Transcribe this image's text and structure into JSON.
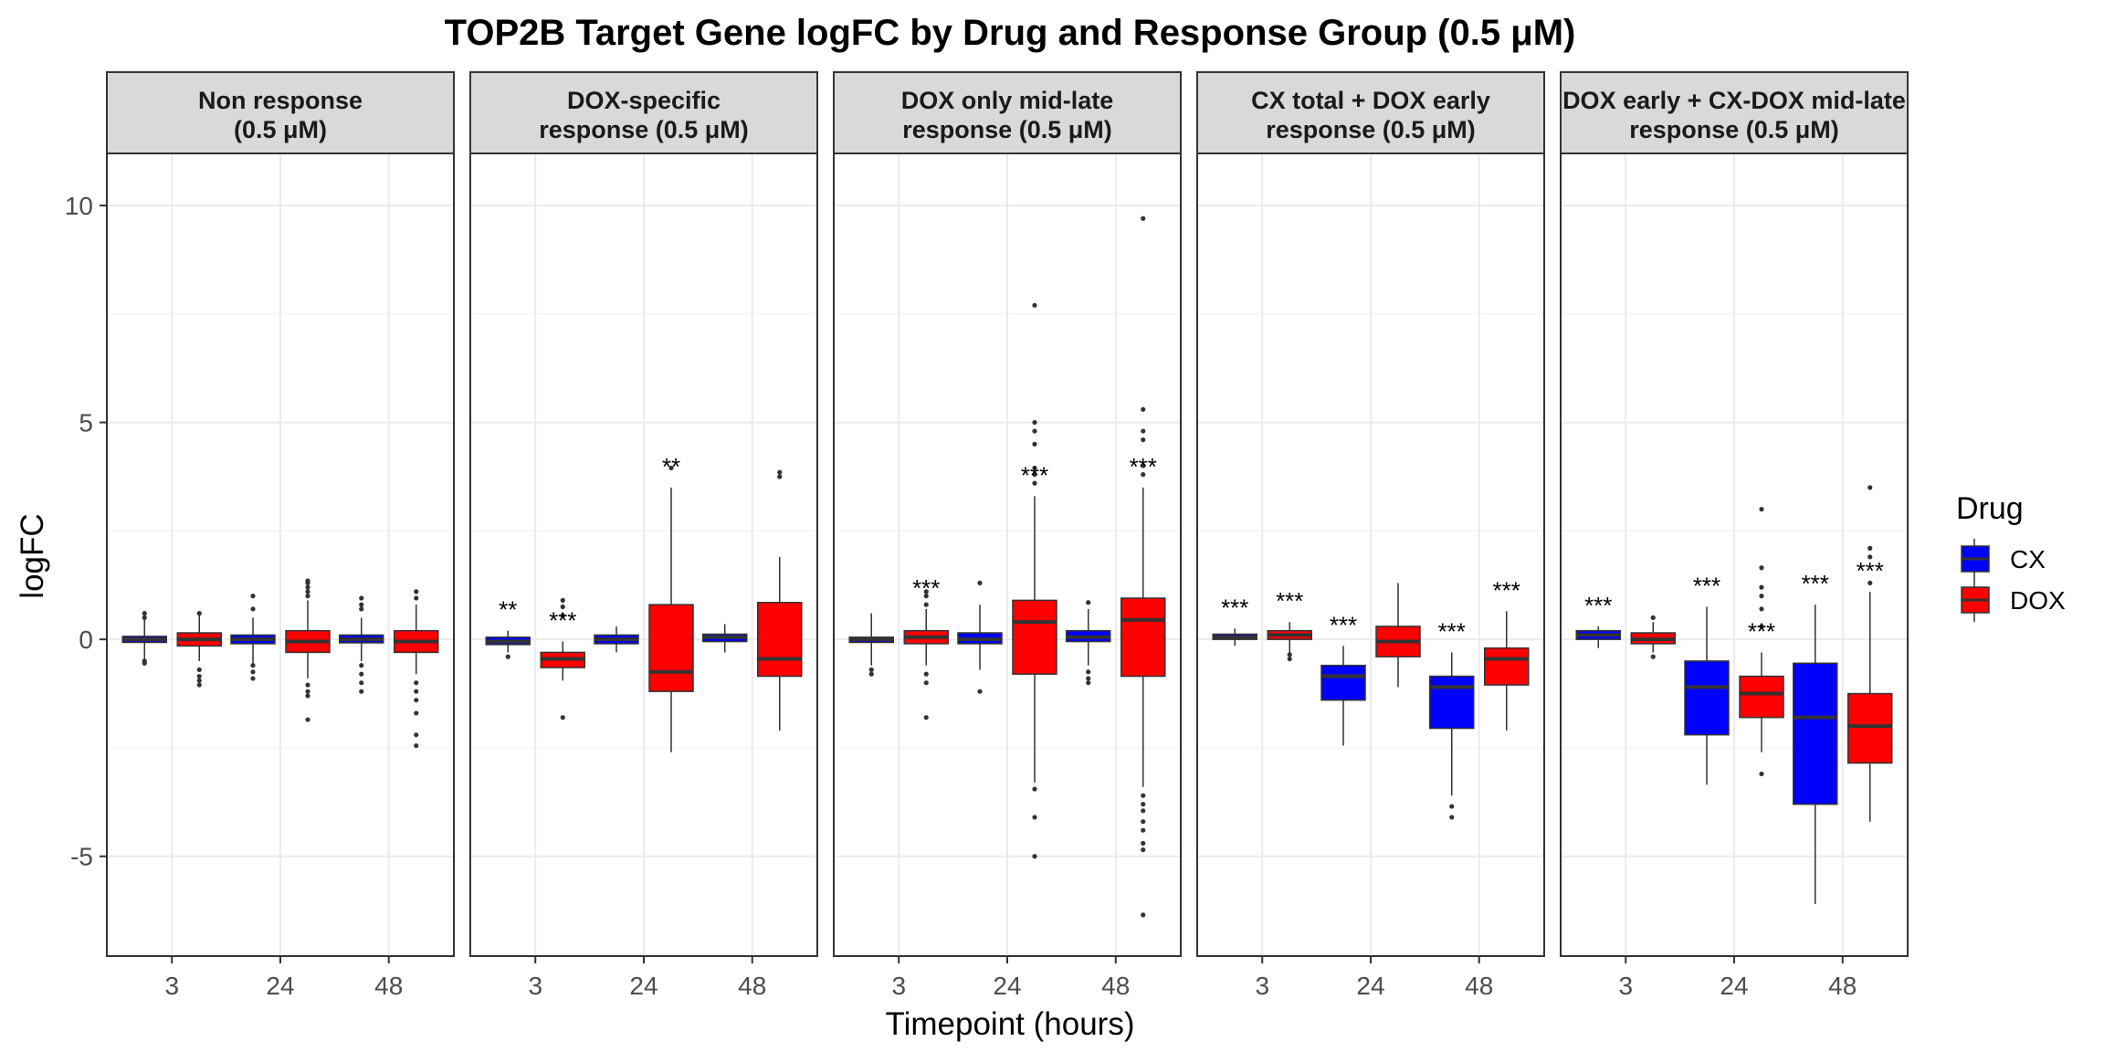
{
  "chart_data": {
    "type": "box",
    "title": "TOP2B Target Gene logFC by Drug and Response Group (0.5 μM)",
    "xlabel": "Timepoint (hours)",
    "ylabel": "logFC",
    "ylim": [
      -7.3,
      11.2
    ],
    "yticks": [
      -5,
      0,
      5,
      10
    ],
    "ytick_labels": [
      "-5",
      "0",
      "5",
      "10"
    ],
    "categories": [
      "3",
      "24",
      "48"
    ],
    "grid": true,
    "legend": {
      "title": "Drug",
      "position": "right",
      "entries": [
        {
          "name": "CX",
          "color": "#0000ff"
        },
        {
          "name": "DOX",
          "color": "#ff0000"
        }
      ]
    },
    "colors": {
      "CX": "#0000ff",
      "DOX": "#ff0000",
      "strip_fill": "#d9d9d9",
      "grid": "#ebebeb",
      "median": "#333333"
    },
    "panels": [
      {
        "label": [
          "Non response",
          "(0.5 μM)"
        ],
        "boxes": [
          {
            "x": "3",
            "drug": "CX",
            "whisker_low": -0.45,
            "q1": -0.07,
            "median": 0.0,
            "q3": 0.07,
            "whisker_high": 0.45,
            "outliers": [
              0.6,
              0.5,
              -0.5,
              -0.55
            ],
            "sig": ""
          },
          {
            "x": "3",
            "drug": "DOX",
            "whisker_low": -0.5,
            "q1": -0.15,
            "median": 0.0,
            "q3": 0.15,
            "whisker_high": 0.55,
            "outliers": [
              0.6,
              -0.7,
              -0.85,
              -0.95,
              -1.05
            ],
            "sig": ""
          },
          {
            "x": "24",
            "drug": "CX",
            "whisker_low": -0.55,
            "q1": -0.1,
            "median": 0.0,
            "q3": 0.1,
            "whisker_high": 0.5,
            "outliers": [
              1.0,
              0.7,
              -0.6,
              -0.75,
              -0.9
            ],
            "sig": ""
          },
          {
            "x": "24",
            "drug": "DOX",
            "whisker_low": -0.9,
            "q1": -0.3,
            "median": -0.05,
            "q3": 0.2,
            "whisker_high": 0.9,
            "outliers": [
              1.0,
              1.1,
              1.2,
              1.3,
              1.35,
              -1.05,
              -1.2,
              -1.3,
              -1.85
            ],
            "sig": ""
          },
          {
            "x": "48",
            "drug": "CX",
            "whisker_low": -0.5,
            "q1": -0.08,
            "median": 0.0,
            "q3": 0.1,
            "whisker_high": 0.5,
            "outliers": [
              0.7,
              0.8,
              0.95,
              -0.6,
              -0.8,
              -1.0,
              -1.2
            ],
            "sig": ""
          },
          {
            "x": "48",
            "drug": "DOX",
            "whisker_low": -0.8,
            "q1": -0.3,
            "median": -0.05,
            "q3": 0.2,
            "whisker_high": 0.8,
            "outliers": [
              0.95,
              1.1,
              -1.0,
              -1.2,
              -1.4,
              -1.7,
              -2.2,
              -2.45
            ],
            "sig": ""
          }
        ]
      },
      {
        "label": [
          "DOX-specific",
          "response (0.5 μM)"
        ],
        "boxes": [
          {
            "x": "3",
            "drug": "CX",
            "whisker_low": -0.3,
            "q1": -0.12,
            "median": -0.05,
            "q3": 0.05,
            "whisker_high": 0.2,
            "outliers": [
              -0.4
            ],
            "sig": "**"
          },
          {
            "x": "3",
            "drug": "DOX",
            "whisker_low": -0.95,
            "q1": -0.65,
            "median": -0.45,
            "q3": -0.3,
            "whisker_high": -0.05,
            "outliers": [
              0.55,
              0.75,
              0.9,
              -1.8
            ],
            "sig": "***"
          },
          {
            "x": "24",
            "drug": "CX",
            "whisker_low": -0.3,
            "q1": -0.1,
            "median": 0.0,
            "q3": 0.1,
            "whisker_high": 0.3,
            "outliers": [],
            "sig": ""
          },
          {
            "x": "24",
            "drug": "DOX",
            "whisker_low": -2.6,
            "q1": -1.2,
            "median": -0.75,
            "q3": 0.8,
            "whisker_high": 3.5,
            "outliers": [
              3.95
            ],
            "sig": "**"
          },
          {
            "x": "48",
            "drug": "CX",
            "whisker_low": -0.3,
            "q1": -0.05,
            "median": 0.05,
            "q3": 0.12,
            "whisker_high": 0.35,
            "outliers": [],
            "sig": ""
          },
          {
            "x": "48",
            "drug": "DOX",
            "whisker_low": -2.1,
            "q1": -0.85,
            "median": -0.45,
            "q3": 0.85,
            "whisker_high": 1.9,
            "outliers": [
              3.75,
              3.85
            ],
            "sig": ""
          }
        ]
      },
      {
        "label": [
          "DOX only mid-late",
          "response (0.5 μM)"
        ],
        "boxes": [
          {
            "x": "3",
            "drug": "CX",
            "whisker_low": -0.6,
            "q1": -0.07,
            "median": 0.0,
            "q3": 0.05,
            "whisker_high": 0.6,
            "outliers": [
              -0.7,
              -0.8
            ],
            "sig": ""
          },
          {
            "x": "3",
            "drug": "DOX",
            "whisker_low": -0.6,
            "q1": -0.1,
            "median": 0.05,
            "q3": 0.2,
            "whisker_high": 0.7,
            "outliers": [
              0.8,
              1.0,
              1.1,
              -0.8,
              -1.0,
              -1.8
            ],
            "sig": "***"
          },
          {
            "x": "24",
            "drug": "CX",
            "whisker_low": -0.7,
            "q1": -0.1,
            "median": 0.0,
            "q3": 0.15,
            "whisker_high": 0.8,
            "outliers": [
              1.3,
              -1.2
            ],
            "sig": ""
          },
          {
            "x": "24",
            "drug": "DOX",
            "whisker_low": -3.3,
            "q1": -0.8,
            "median": 0.4,
            "q3": 0.9,
            "whisker_high": 3.3,
            "outliers": [
              3.6,
              3.8,
              3.95,
              4.5,
              4.8,
              5.0,
              7.7,
              -3.45,
              -4.1,
              -5.0
            ],
            "sig": "***"
          },
          {
            "x": "48",
            "drug": "CX",
            "whisker_low": -0.6,
            "q1": -0.05,
            "median": 0.05,
            "q3": 0.2,
            "whisker_high": 0.7,
            "outliers": [
              0.85,
              -0.75,
              -0.9,
              -1.0
            ],
            "sig": ""
          },
          {
            "x": "48",
            "drug": "DOX",
            "whisker_low": -3.4,
            "q1": -0.85,
            "median": 0.45,
            "q3": 0.95,
            "whisker_high": 3.5,
            "outliers": [
              3.8,
              4.0,
              4.6,
              4.8,
              5.3,
              9.7,
              -3.6,
              -3.8,
              -3.95,
              -4.2,
              -4.4,
              -4.7,
              -4.85,
              -6.35
            ],
            "sig": "***"
          }
        ]
      },
      {
        "label": [
          "CX total + DOX early",
          "response (0.5 μM)"
        ],
        "boxes": [
          {
            "x": "3",
            "drug": "CX",
            "whisker_low": -0.15,
            "q1": 0.0,
            "median": 0.05,
            "q3": 0.12,
            "whisker_high": 0.25,
            "outliers": [],
            "sig": "***"
          },
          {
            "x": "3",
            "drug": "DOX",
            "whisker_low": -0.3,
            "q1": 0.0,
            "median": 0.1,
            "q3": 0.2,
            "whisker_high": 0.4,
            "outliers": [
              -0.35,
              -0.45
            ],
            "sig": "***"
          },
          {
            "x": "24",
            "drug": "CX",
            "whisker_low": -2.45,
            "q1": -1.4,
            "median": -0.85,
            "q3": -0.6,
            "whisker_high": -0.15,
            "outliers": [],
            "sig": "***"
          },
          {
            "x": "24",
            "drug": "DOX",
            "whisker_low": -1.1,
            "q1": -0.4,
            "median": -0.05,
            "q3": 0.3,
            "whisker_high": 1.3,
            "outliers": [],
            "sig": ""
          },
          {
            "x": "48",
            "drug": "CX",
            "whisker_low": -3.6,
            "q1": -2.05,
            "median": -1.1,
            "q3": -0.85,
            "whisker_high": -0.3,
            "outliers": [
              -3.85,
              -4.1
            ],
            "sig": "***"
          },
          {
            "x": "48",
            "drug": "DOX",
            "whisker_low": -2.1,
            "q1": -1.05,
            "median": -0.45,
            "q3": -0.2,
            "whisker_high": 0.65,
            "outliers": [],
            "sig": "***"
          }
        ]
      },
      {
        "label": [
          "DOX early + CX-DOX mid-late",
          "response (0.5 μM)"
        ],
        "boxes": [
          {
            "x": "3",
            "drug": "CX",
            "whisker_low": -0.2,
            "q1": 0.0,
            "median": 0.1,
            "q3": 0.2,
            "whisker_high": 0.3,
            "outliers": [],
            "sig": "***"
          },
          {
            "x": "3",
            "drug": "DOX",
            "whisker_low": -0.3,
            "q1": -0.1,
            "median": 0.0,
            "q3": 0.15,
            "whisker_high": 0.4,
            "outliers": [
              0.5,
              -0.4
            ],
            "sig": ""
          },
          {
            "x": "24",
            "drug": "CX",
            "whisker_low": -3.35,
            "q1": -2.2,
            "median": -1.1,
            "q3": -0.5,
            "whisker_high": 0.75,
            "outliers": [],
            "sig": "***"
          },
          {
            "x": "24",
            "drug": "DOX",
            "whisker_low": -2.6,
            "q1": -1.8,
            "median": -1.25,
            "q3": -0.85,
            "whisker_high": -0.3,
            "outliers": [
              0.3,
              0.7,
              1.0,
              1.2,
              1.65,
              3.0,
              -3.1
            ],
            "sig": "***"
          },
          {
            "x": "48",
            "drug": "CX",
            "whisker_low": -6.1,
            "q1": -3.8,
            "median": -1.8,
            "q3": -0.55,
            "whisker_high": 0.8,
            "outliers": [],
            "sig": "***"
          },
          {
            "x": "48",
            "drug": "DOX",
            "whisker_low": -4.2,
            "q1": -2.85,
            "median": -2.0,
            "q3": -1.25,
            "whisker_high": 1.1,
            "outliers": [
              1.3,
              1.9,
              2.1,
              3.5
            ],
            "sig": "***"
          }
        ]
      }
    ]
  }
}
